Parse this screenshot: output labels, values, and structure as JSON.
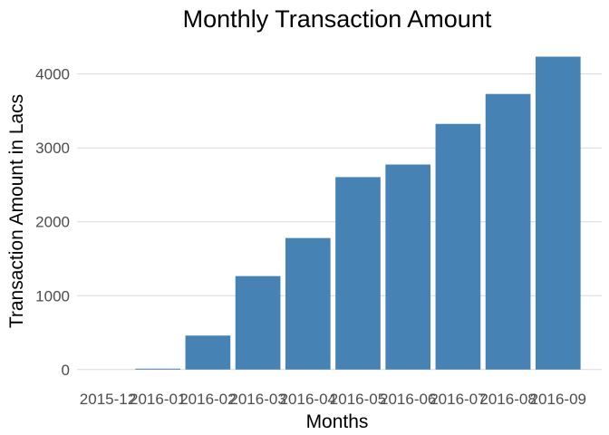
{
  "chart_data": {
    "type": "bar",
    "title": "Monthly Transaction Amount",
    "xlabel": "Months",
    "ylabel": "Transaction Amount in Lacs",
    "categories": [
      "2015-12",
      "2016-01",
      "2016-02",
      "2016-03",
      "2016-04",
      "2016-05",
      "2016-06",
      "2016-07",
      "2016-08",
      "2016-09"
    ],
    "values": [
      0,
      12,
      460,
      1265,
      1780,
      2605,
      2775,
      3325,
      3730,
      4235
    ],
    "ylim": [
      -150,
      4450
    ],
    "yticks": [
      0,
      1000,
      2000,
      3000,
      4000
    ],
    "grid": true,
    "legend": "none",
    "bar_color": "#4682b4",
    "grid_color": "#d9d9d9"
  }
}
